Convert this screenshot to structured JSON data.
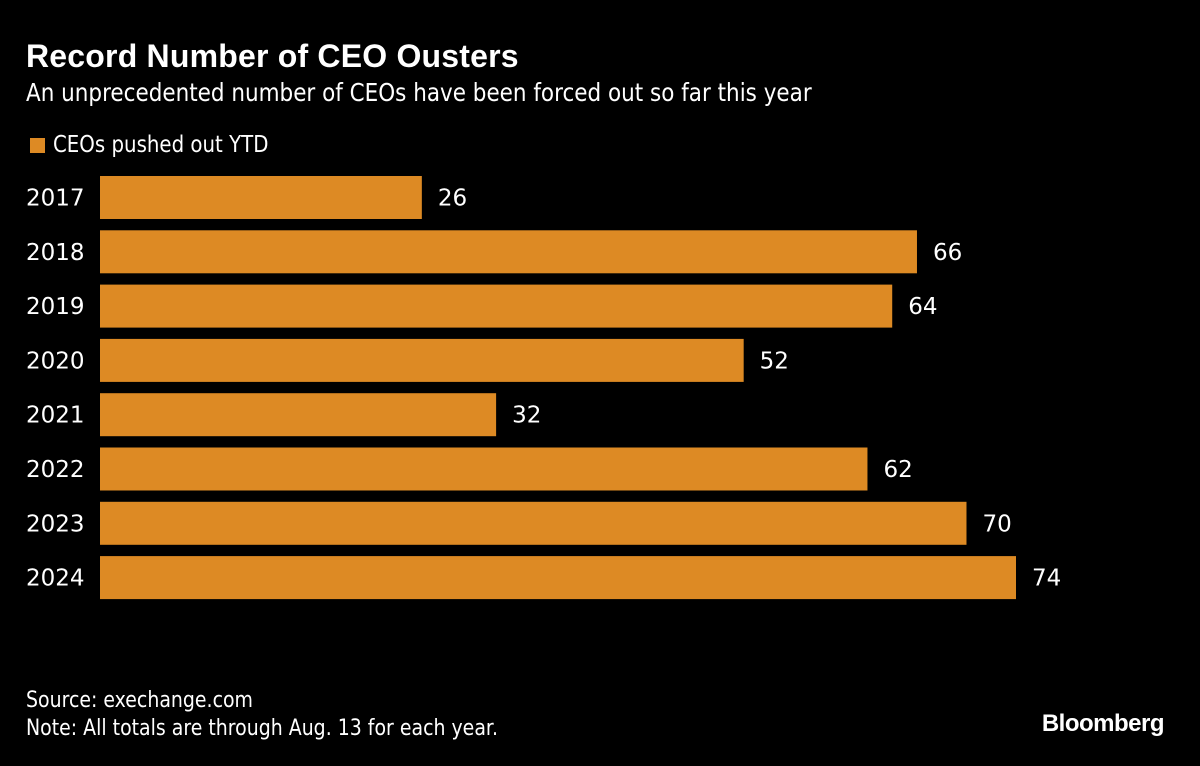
{
  "chart_data": {
    "type": "bar",
    "orientation": "horizontal",
    "title": "Record Number of CEO Ousters",
    "subtitle": "An unprecedented number of CEOs have been forced out so far this year",
    "legend": [
      {
        "label": "CEOs pushed out YTD",
        "color": "#DD8A24"
      }
    ],
    "legend_position": "top-left",
    "categories": [
      "2017",
      "2018",
      "2019",
      "2020",
      "2021",
      "2022",
      "2023",
      "2024"
    ],
    "series": [
      {
        "name": "CEOs pushed out YTD",
        "values": [
          26,
          66,
          64,
          52,
          32,
          62,
          70,
          74
        ]
      }
    ],
    "xlabel": "",
    "ylabel": "",
    "xlim": [
      0,
      74
    ],
    "grid": false,
    "data_labels": true,
    "bar_color": "#DD8A24"
  },
  "footer": {
    "source": "Source: exechange.com",
    "note": "Note: All totals are through Aug. 13 for each year.",
    "brand": "Bloomberg"
  }
}
